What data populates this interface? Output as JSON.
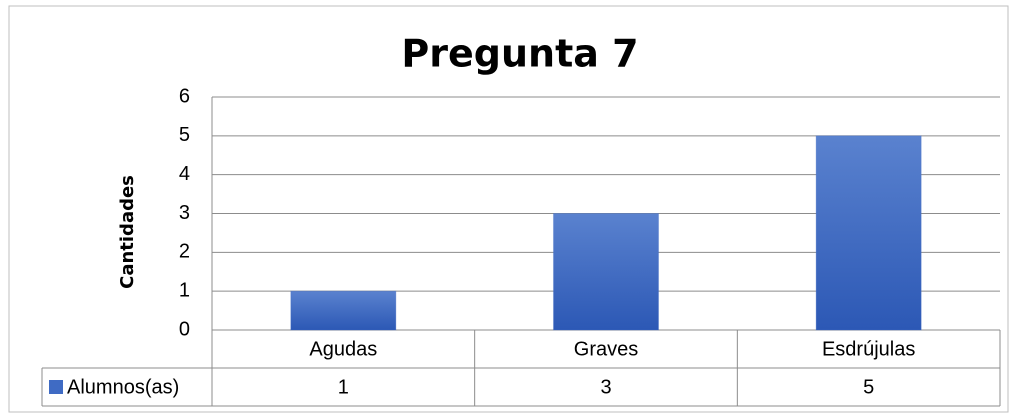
{
  "chart_data": {
    "type": "bar",
    "title": "Pregunta 7",
    "y_label": "Cantidades",
    "categories": [
      "Agudas",
      "Graves",
      "Esdrújulas"
    ],
    "series": [
      {
        "name": "Alumnos(as)",
        "color": "#3f6bc4",
        "values": [
          1,
          3,
          5
        ]
      }
    ],
    "ylim": [
      0,
      6
    ],
    "yticks": [
      0,
      1,
      2,
      3,
      4,
      5,
      6
    ],
    "grid": true
  }
}
